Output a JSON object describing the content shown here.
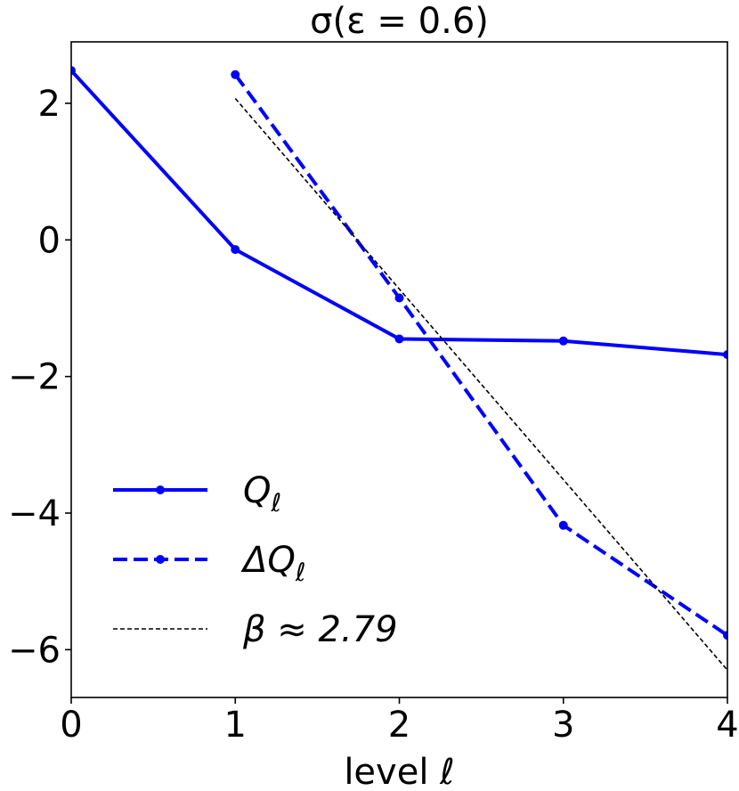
{
  "chart_data": {
    "type": "line",
    "title": "σ(ε = 0.6)",
    "xlabel": "level ℓ",
    "ylabel": "",
    "xlim": [
      0,
      4
    ],
    "ylim": [
      -6.7,
      2.9
    ],
    "x_ticks": [
      0,
      1,
      2,
      3,
      4
    ],
    "x_tick_labels": [
      "0",
      "1",
      "2",
      "3",
      "4"
    ],
    "y_ticks": [
      2,
      0,
      -2,
      -4,
      -6
    ],
    "y_tick_labels": [
      "2",
      "0",
      "−2",
      "−4",
      "−6"
    ],
    "grid": false,
    "legend_position": "lower-left",
    "series": [
      {
        "name": "Q_ℓ",
        "label_main": "Q",
        "label_sub": "ℓ",
        "color": "#0000ff",
        "style": "solid-marker",
        "x": [
          0,
          1,
          2,
          3,
          4
        ],
        "y": [
          2.48,
          -0.14,
          -1.45,
          -1.48,
          -1.68
        ]
      },
      {
        "name": "ΔQ_ℓ",
        "label_main": "ΔQ",
        "label_sub": "ℓ",
        "color": "#0000ff",
        "style": "dashed-marker",
        "x": [
          1,
          2,
          3,
          4
        ],
        "y": [
          2.42,
          -0.85,
          -4.18,
          -5.79
        ]
      },
      {
        "name": "β ≈ 2.79",
        "label_main": "β ≈ 2.79",
        "label_sub": "",
        "color": "#000000",
        "style": "dotted-thin",
        "x": [
          1,
          4
        ],
        "y": [
          2.07,
          -6.3
        ]
      }
    ]
  }
}
